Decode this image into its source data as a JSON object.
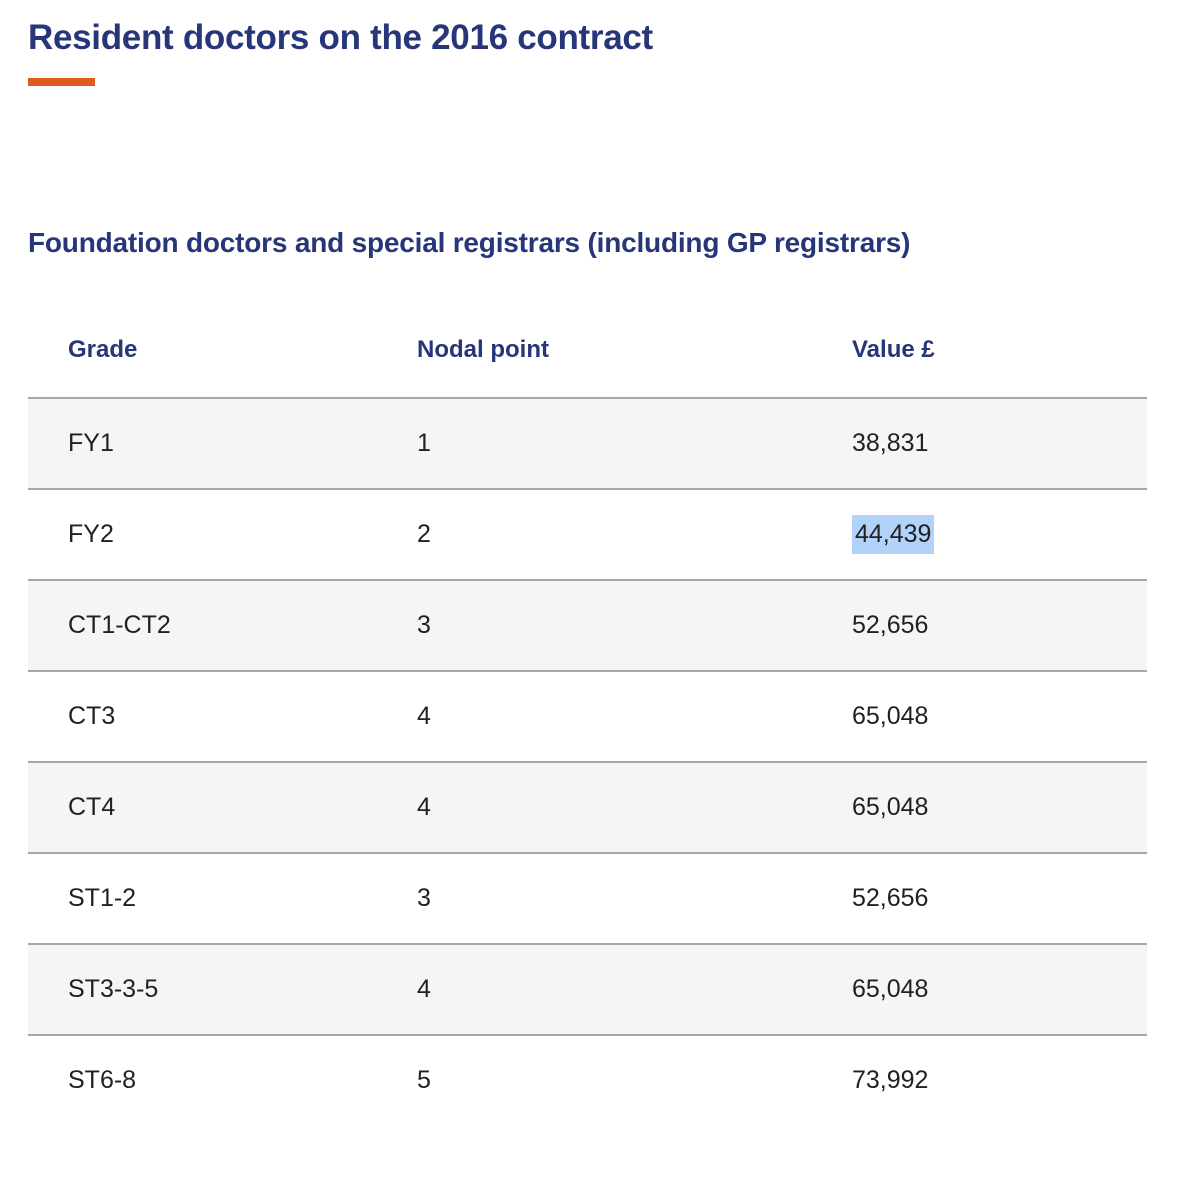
{
  "page": {
    "title": "Resident doctors on the 2016 contract",
    "section_heading": "Foundation doctors and special registrars (including GP registrars)"
  },
  "colors": {
    "heading_navy": "#263678",
    "accent_orange": "#e05a1e",
    "row_alternate_gray": "#f5f5f5",
    "row_divider_gray": "#a6a6a6",
    "cell_text": "#212121",
    "text_selection_blue": "#b1d3fa"
  },
  "table": {
    "columns": {
      "grade": "Grade",
      "nodal_point": "Nodal point",
      "value": "Value £"
    },
    "rows": [
      {
        "grade": "FY1",
        "nodal_point": "1",
        "value": "38,831",
        "selected": false
      },
      {
        "grade": "FY2",
        "nodal_point": "2",
        "value": "44,439",
        "selected": true
      },
      {
        "grade": "CT1-CT2",
        "nodal_point": "3",
        "value": "52,656",
        "selected": false
      },
      {
        "grade": "CT3",
        "nodal_point": "4",
        "value": "65,048",
        "selected": false
      },
      {
        "grade": "CT4",
        "nodal_point": "4",
        "value": "65,048",
        "selected": false
      },
      {
        "grade": "ST1-2",
        "nodal_point": "3",
        "value": "52,656",
        "selected": false
      },
      {
        "grade": "ST3-3-5",
        "nodal_point": "4",
        "value": "65,048",
        "selected": false
      },
      {
        "grade": "ST6-8",
        "nodal_point": "5",
        "value": "73,992",
        "selected": false
      }
    ]
  }
}
